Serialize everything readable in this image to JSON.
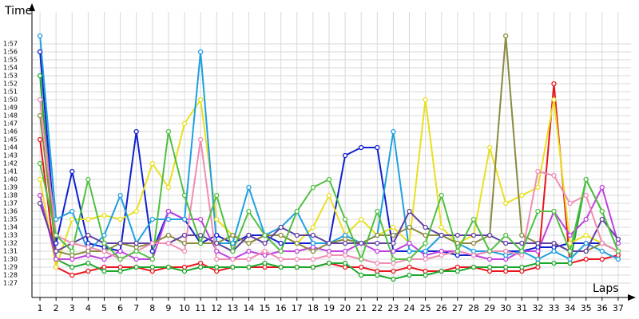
{
  "chart_data": {
    "type": "line",
    "y_label": "Time",
    "x_label": "Laps",
    "x": [
      1,
      2,
      3,
      4,
      5,
      6,
      7,
      8,
      9,
      10,
      11,
      12,
      13,
      14,
      15,
      16,
      17,
      18,
      19,
      20,
      21,
      22,
      23,
      24,
      25,
      26,
      27,
      28,
      29,
      30,
      31,
      32,
      33,
      34,
      35,
      36,
      37
    ],
    "xlim": [
      0.5,
      37.8
    ],
    "ylim": [
      85.2,
      121
    ],
    "yticks": [
      {
        "value": 87,
        "label": "1:27"
      },
      {
        "value": 88,
        "label": "1:28"
      },
      {
        "value": 89,
        "label": "1:29"
      },
      {
        "value": 90,
        "label": "1:30"
      },
      {
        "value": 91,
        "label": "1:31"
      },
      {
        "value": 92,
        "label": "1:32"
      },
      {
        "value": 93,
        "label": "1:33"
      },
      {
        "value": 94,
        "label": "1:34"
      },
      {
        "value": 95,
        "label": "1:35"
      },
      {
        "value": 96,
        "label": "1:36"
      },
      {
        "value": 97,
        "label": "1:37"
      },
      {
        "value": 98,
        "label": "1:38"
      },
      {
        "value": 99,
        "label": "1:39"
      },
      {
        "value": 100,
        "label": "1:40"
      },
      {
        "value": 101,
        "label": "1:41"
      },
      {
        "value": 102,
        "label": "1:42"
      },
      {
        "value": 103,
        "label": "1:43"
      },
      {
        "value": 104,
        "label": "1:44"
      },
      {
        "value": 105,
        "label": "1:45"
      },
      {
        "value": 106,
        "label": "1:46"
      },
      {
        "value": 107,
        "label": "1:47"
      },
      {
        "value": 108,
        "label": "1:48"
      },
      {
        "value": 109,
        "label": "1:49"
      },
      {
        "value": 110,
        "label": "1:50"
      },
      {
        "value": 111,
        "label": "1:51"
      },
      {
        "value": 112,
        "label": "1:52"
      },
      {
        "value": 113,
        "label": "1:53"
      },
      {
        "value": 114,
        "label": "1:54"
      },
      {
        "value": 115,
        "label": "1:55"
      },
      {
        "value": 116,
        "label": "1:56"
      },
      {
        "value": 117,
        "label": "1:57"
      }
    ],
    "grid": true,
    "series": [
      {
        "color": "#e8141e",
        "values": [
          105,
          89,
          88,
          88.5,
          89,
          89,
          89,
          88.5,
          89,
          89,
          89.5,
          88.5,
          89,
          89,
          89,
          89,
          89,
          89,
          89.5,
          89,
          89,
          88.5,
          88.5,
          89,
          88.5,
          88.5,
          89,
          89,
          88.5,
          88.5,
          88.5,
          89,
          112,
          89.5,
          90,
          90,
          90.5
        ]
      },
      {
        "color": "#1aa82a",
        "values": [
          113,
          90,
          89,
          89.5,
          88.5,
          88.5,
          89,
          89,
          89,
          88.5,
          89,
          89,
          89,
          89,
          89.5,
          89,
          89,
          89,
          89.5,
          89.5,
          88,
          88,
          87.5,
          88,
          88,
          88.5,
          88.5,
          89,
          89,
          89,
          89,
          89.5,
          89.5,
          89.5,
          100,
          96,
          91
        ]
      },
      {
        "color": "#1020d0",
        "values": [
          116,
          92,
          101,
          92,
          91.5,
          91,
          106,
          91,
          96,
          95,
          92,
          93,
          92,
          93,
          93,
          92,
          92,
          92,
          92,
          103,
          104,
          104,
          91,
          91,
          91,
          91,
          90.5,
          90.5,
          91,
          91,
          91,
          91.5,
          91.5,
          92,
          92,
          92,
          91
        ]
      },
      {
        "color": "#e8e020",
        "values": [
          100,
          89,
          95,
          95,
          95.5,
          95,
          96,
          102,
          99,
          107,
          110,
          95,
          93,
          92,
          93,
          93,
          92,
          94,
          98,
          93,
          95,
          93,
          94,
          92,
          110,
          94,
          92,
          93,
          104,
          97,
          98,
          99,
          110,
          92,
          93,
          92,
          91
        ]
      },
      {
        "color": "#c040e0",
        "values": [
          98,
          90,
          90,
          90.5,
          90,
          91,
          90,
          90,
          96,
          95,
          95,
          91,
          90,
          91,
          90.5,
          91,
          91,
          91.5,
          91,
          91,
          92,
          91,
          91,
          92,
          90.5,
          91,
          91,
          90.5,
          90,
          90,
          91,
          91,
          96,
          93,
          95,
          99,
          92
        ]
      },
      {
        "color": "#1ea0e0",
        "values": [
          118,
          95,
          96,
          91,
          93,
          98,
          92,
          95,
          95,
          95,
          116,
          92,
          92,
          99,
          93,
          94,
          96,
          92,
          92,
          93,
          92,
          93,
          106,
          91,
          91,
          93,
          92,
          91,
          91,
          90.5,
          91,
          90,
          91,
          90,
          92,
          91,
          90
        ]
      },
      {
        "color": "#8a8a40",
        "values": [
          108,
          91,
          90.5,
          91,
          91,
          92,
          91.5,
          92,
          93,
          92,
          92,
          92,
          93,
          92,
          93,
          93,
          92,
          91,
          92,
          92.5,
          92,
          93,
          93,
          94,
          93,
          93,
          92,
          92,
          93,
          118,
          93,
          92,
          92,
          91,
          91,
          92,
          91
        ]
      },
      {
        "color": "#6040a0",
        "values": [
          97,
          91,
          92,
          93,
          92,
          92,
          92,
          92,
          92,
          93,
          93,
          92,
          91,
          93,
          92,
          94,
          93,
          93,
          92,
          92,
          92,
          92,
          92,
          96,
          94,
          93,
          93,
          93,
          93,
          92,
          92,
          92,
          92,
          91,
          91,
          95,
          92.5
        ]
      },
      {
        "color": "#f08cb4",
        "values": [
          110,
          93,
          92,
          91.5,
          91,
          90,
          91,
          92,
          92,
          91,
          105,
          90,
          90,
          90,
          91,
          90,
          90,
          90,
          90.5,
          90.5,
          90,
          89.5,
          89.5,
          90,
          90,
          90.5,
          91,
          90.5,
          91,
          91,
          90.5,
          101,
          100.5,
          97,
          98,
          92,
          91
        ]
      },
      {
        "color": "#50c040",
        "values": [
          102,
          93,
          91,
          100,
          92,
          90,
          91,
          90,
          106,
          98,
          92,
          98,
          91,
          96,
          93,
          91,
          96,
          99,
          100,
          95,
          90,
          96,
          90,
          90,
          92,
          98,
          91,
          95,
          91,
          93,
          91,
          96,
          96,
          91,
          100,
          96,
          91
        ]
      }
    ]
  }
}
